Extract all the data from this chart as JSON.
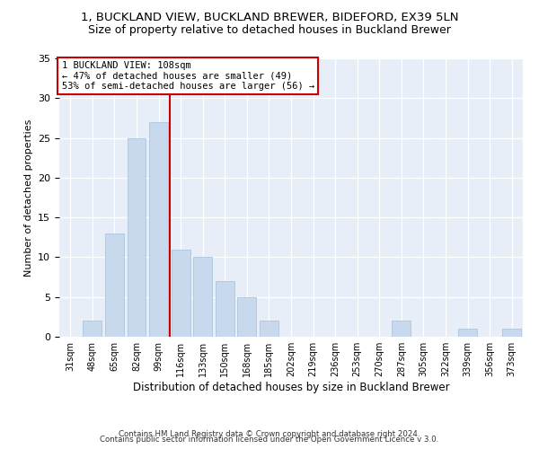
{
  "title1": "1, BUCKLAND VIEW, BUCKLAND BREWER, BIDEFORD, EX39 5LN",
  "title2": "Size of property relative to detached houses in Buckland Brewer",
  "xlabel": "Distribution of detached houses by size in Buckland Brewer",
  "ylabel": "Number of detached properties",
  "categories": [
    "31sqm",
    "48sqm",
    "65sqm",
    "82sqm",
    "99sqm",
    "116sqm",
    "133sqm",
    "150sqm",
    "168sqm",
    "185sqm",
    "202sqm",
    "219sqm",
    "236sqm",
    "253sqm",
    "270sqm",
    "287sqm",
    "305sqm",
    "322sqm",
    "339sqm",
    "356sqm",
    "373sqm"
  ],
  "values": [
    0,
    2,
    13,
    25,
    27,
    11,
    10,
    7,
    5,
    2,
    0,
    0,
    0,
    0,
    0,
    2,
    0,
    0,
    1,
    0,
    1
  ],
  "bar_color": "#c8d9ee",
  "bar_edge_color": "#adc4df",
  "red_line_index": 5,
  "ylim": [
    0,
    35
  ],
  "annotation_title": "1 BUCKLAND VIEW: 108sqm",
  "annotation_line1": "← 47% of detached houses are smaller (49)",
  "annotation_line2": "53% of semi-detached houses are larger (56) →",
  "annotation_box_color": "#ffffff",
  "annotation_box_edge": "#cc0000",
  "red_line_color": "#cc0000",
  "footer1": "Contains HM Land Registry data © Crown copyright and database right 2024.",
  "footer2": "Contains public sector information licensed under the Open Government Licence v 3.0.",
  "bg_color": "#e8eef8",
  "title_fontsize": 9.5,
  "subtitle_fontsize": 9
}
